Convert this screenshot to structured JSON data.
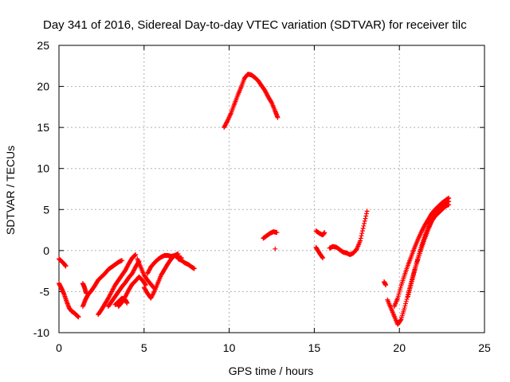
{
  "chart_data": {
    "type": "scatter",
    "title": "Day 341 of 2016, Sidereal Day-to-day VTEC variation (SDTVAR) for receiver tilc",
    "xlabel": "GPS time / hours",
    "ylabel": "SDTVAR / TECUs",
    "xlim": [
      0,
      25
    ],
    "ylim": [
      -10,
      25
    ],
    "xticks": [
      0,
      5,
      10,
      15,
      20,
      25
    ],
    "yticks": [
      -10,
      -5,
      0,
      5,
      10,
      15,
      20,
      25
    ],
    "xtick_labels": [
      "0",
      "5",
      "10",
      "15",
      "20",
      "25"
    ],
    "ytick_labels": [
      "-10",
      "-5",
      "0",
      "5",
      "10",
      "15",
      "20",
      "25"
    ],
    "grid": true,
    "marker": "+",
    "series": [
      {
        "color": "#ff0000",
        "tracks": [
          {
            "x": [
              0.0,
              0.15,
              0.3,
              0.4
            ],
            "y": [
              -1.0,
              -1.3,
              -1.6,
              -1.9
            ]
          },
          {
            "x": [
              0.0,
              0.15,
              0.3,
              0.45,
              0.6,
              0.75,
              0.9,
              1.05,
              1.15
            ],
            "y": [
              -4.0,
              -4.6,
              -5.3,
              -6.2,
              -7.0,
              -7.4,
              -7.6,
              -7.9,
              -8.1
            ]
          },
          {
            "x": [
              1.4,
              1.55,
              1.7,
              1.9,
              2.1,
              2.3,
              2.5,
              2.7,
              2.9,
              3.1,
              3.3,
              3.5,
              3.7
            ],
            "y": [
              -6.8,
              -6.0,
              -5.4,
              -4.9,
              -4.3,
              -3.6,
              -3.2,
              -2.8,
              -2.3,
              -2.0,
              -1.7,
              -1.4,
              -1.2
            ]
          },
          {
            "x": [
              1.4,
              1.5,
              1.6
            ],
            "y": [
              -4.0,
              -4.5,
              -5.2
            ]
          },
          {
            "x": [
              2.3,
              2.5,
              2.7,
              2.9,
              3.1,
              3.3,
              3.5,
              3.7,
              3.9,
              4.1,
              4.3,
              4.5
            ],
            "y": [
              -7.8,
              -7.2,
              -6.5,
              -5.8,
              -5.0,
              -4.2,
              -3.6,
              -3.0,
              -2.4,
              -1.6,
              -0.9,
              -0.5
            ]
          },
          {
            "x": [
              2.9,
              3.1,
              3.3,
              3.5,
              3.7,
              3.9,
              4.1,
              4.3,
              4.5,
              4.7
            ],
            "y": [
              -6.8,
              -6.2,
              -5.6,
              -5.0,
              -4.4,
              -3.9,
              -3.3,
              -2.8,
              -2.0,
              -1.3
            ]
          },
          {
            "x": [
              3.3,
              3.5,
              3.7,
              3.9,
              4.0
            ],
            "y": [
              -6.6,
              -6.2,
              -5.8,
              -6.0,
              -6.4
            ]
          },
          {
            "x": [
              3.5,
              3.7,
              3.9,
              4.1,
              4.3,
              4.5,
              4.7,
              4.9,
              5.1
            ],
            "y": [
              -6.8,
              -6.3,
              -5.6,
              -4.8,
              -4.1,
              -3.7,
              -3.2,
              -3.6,
              -4.2
            ]
          },
          {
            "x": [
              4.6,
              4.8,
              5.0,
              5.2,
              5.4,
              5.6
            ],
            "y": [
              -1.0,
              -2.0,
              -3.0,
              -3.6,
              -4.1,
              -4.6
            ]
          },
          {
            "x": [
              5.0,
              5.2,
              5.4,
              5.6,
              5.8,
              6.0,
              6.2,
              6.4,
              6.6,
              6.8,
              7.0
            ],
            "y": [
              -4.5,
              -5.2,
              -5.8,
              -5.0,
              -4.0,
              -3.0,
              -2.3,
              -1.6,
              -1.0,
              -0.6,
              -0.4
            ]
          },
          {
            "x": [
              5.2,
              5.4,
              5.6,
              5.8,
              6.0,
              6.2,
              6.4,
              6.6,
              6.8,
              7.0,
              7.2
            ],
            "y": [
              -2.8,
              -2.0,
              -1.5,
              -1.1,
              -0.8,
              -0.6,
              -0.6,
              -0.7,
              -0.6,
              -0.8,
              -0.9
            ]
          },
          {
            "x": [
              7.0,
              7.2,
              7.4,
              7.6,
              7.8,
              7.95
            ],
            "y": [
              -1.0,
              -1.2,
              -1.5,
              -1.7,
              -2.0,
              -2.2
            ]
          },
          {
            "x": [
              9.7,
              9.9,
              10.1,
              10.3,
              10.5,
              10.7,
              10.9,
              11.1,
              11.3,
              11.5,
              11.7,
              11.9,
              12.1,
              12.3,
              12.5,
              12.7,
              12.85
            ],
            "y": [
              15.0,
              15.8,
              16.7,
              17.8,
              18.9,
              19.9,
              21.0,
              21.5,
              21.4,
              21.1,
              20.7,
              20.1,
              19.5,
              18.7,
              18.0,
              17.0,
              16.2
            ]
          },
          {
            "x": [
              12.0,
              12.2,
              12.4,
              12.6,
              12.8
            ],
            "y": [
              1.5,
              1.8,
              2.1,
              2.3,
              2.2
            ]
          },
          {
            "x": [
              12.7
            ],
            "y": [
              0.2
            ]
          },
          {
            "x": [
              15.1,
              15.3,
              15.5,
              15.6
            ],
            "y": [
              2.4,
              2.1,
              1.9,
              2.2
            ]
          },
          {
            "x": [
              15.1,
              15.3,
              15.5
            ],
            "y": [
              0.4,
              -0.3,
              -0.9
            ]
          },
          {
            "x": [
              15.9,
              16.1,
              16.3,
              16.5,
              16.7,
              16.9,
              17.1,
              17.3,
              17.5,
              17.7,
              17.9,
              18.1
            ],
            "y": [
              0.3,
              0.5,
              0.4,
              0.1,
              -0.2,
              -0.3,
              -0.5,
              -0.3,
              0.2,
              1.2,
              3.0,
              4.8
            ]
          },
          {
            "x": [
              19.1,
              19.2
            ],
            "y": [
              -3.8,
              -4.2
            ]
          },
          {
            "x": [
              19.3,
              19.5,
              19.7,
              19.9,
              20.1,
              20.3,
              20.5,
              20.7,
              20.9,
              21.1,
              21.3,
              21.5,
              21.7,
              21.9,
              22.1,
              22.3,
              22.5,
              22.7,
              22.9
            ],
            "y": [
              -6.0,
              -7.0,
              -8.0,
              -9.0,
              -8.4,
              -7.0,
              -5.4,
              -3.8,
              -2.3,
              -1.0,
              0.3,
              1.5,
              2.6,
              3.6,
              4.4,
              5.1,
              5.5,
              5.8,
              6.0
            ]
          },
          {
            "x": [
              19.7,
              19.9,
              20.1,
              20.3,
              20.5,
              20.7,
              20.9,
              21.1,
              21.3,
              21.5,
              21.7,
              21.9,
              22.1,
              22.3,
              22.5,
              22.7,
              22.9
            ],
            "y": [
              -6.8,
              -5.8,
              -4.3,
              -3.0,
              -1.8,
              -0.7,
              0.4,
              1.4,
              2.3,
              3.1,
              3.8,
              4.5,
              5.0,
              5.4,
              5.8,
              6.1,
              6.4
            ]
          },
          {
            "x": [
              20.5,
              20.7,
              20.9,
              21.1,
              21.3,
              21.5,
              21.7,
              21.9,
              22.1,
              22.3,
              22.5,
              22.7,
              22.9
            ],
            "y": [
              -5.6,
              -4.0,
              -2.4,
              -0.8,
              0.6,
              1.8,
              2.8,
              3.6,
              4.2,
              4.6,
              5.0,
              5.4,
              5.6
            ]
          }
        ]
      }
    ]
  }
}
